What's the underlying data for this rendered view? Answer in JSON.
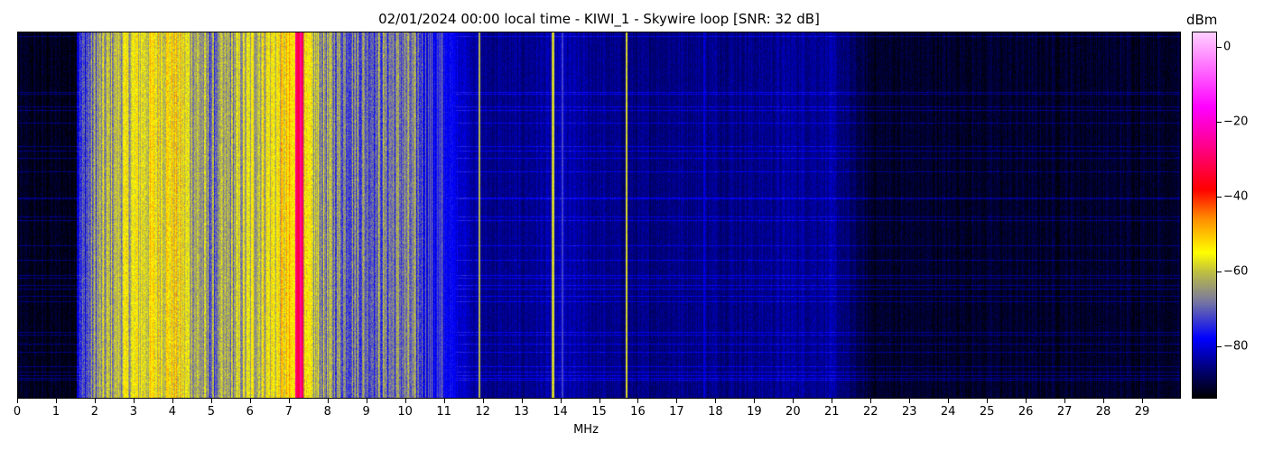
{
  "chart_data": {
    "type": "heatmap",
    "title": "02/01/2024 00:00 local time - KIWI_1 - Skywire loop [SNR: 32 dB]",
    "xlabel": "MHz",
    "ylabel": "",
    "xlim": [
      0,
      30
    ],
    "x_ticks": [
      "0",
      "1",
      "2",
      "3",
      "4",
      "5",
      "6",
      "7",
      "8",
      "9",
      "10",
      "11",
      "12",
      "13",
      "14",
      "15",
      "16",
      "17",
      "18",
      "19",
      "20",
      "21",
      "22",
      "23",
      "24",
      "25",
      "26",
      "27",
      "28",
      "29"
    ],
    "colorbar": {
      "label": "dBm",
      "range": [
        -94,
        4
      ],
      "ticks": [
        "0",
        "−20",
        "−40",
        "−60",
        "−80"
      ],
      "tick_values": [
        0,
        -20,
        -40,
        -60,
        -80
      ],
      "colormap_stops": [
        {
          "value": -94,
          "color": "#000000"
        },
        {
          "value": -86,
          "color": "#00007a"
        },
        {
          "value": -78,
          "color": "#0000ff"
        },
        {
          "value": -68,
          "color": "#7878a0"
        },
        {
          "value": -60,
          "color": "#c0c040"
        },
        {
          "value": -55,
          "color": "#ffff00"
        },
        {
          "value": -46,
          "color": "#ff9000"
        },
        {
          "value": -38,
          "color": "#ff0000"
        },
        {
          "value": -26,
          "color": "#ff0090"
        },
        {
          "value": -16,
          "color": "#ff00ff"
        },
        {
          "value": 4,
          "color": "#ffd0ff"
        }
      ]
    },
    "mean_power_dbm_per_mhz": {
      "x": [
        0,
        1,
        2,
        3,
        4,
        5,
        6,
        7,
        8,
        9,
        10,
        11,
        12,
        13,
        14,
        15,
        16,
        17,
        18,
        19,
        20,
        21,
        22,
        23,
        24,
        25,
        26,
        27,
        28,
        29
      ],
      "values": [
        -92,
        -90,
        -66,
        -58,
        -54,
        -68,
        -60,
        -54,
        -66,
        -68,
        -68,
        -77,
        -85,
        -85,
        -83,
        -85,
        -86,
        -85,
        -85,
        -85,
        -84,
        -84,
        -91,
        -91,
        -91,
        -91,
        -91,
        -91,
        -91,
        -91
      ]
    },
    "narrow_signals": [
      {
        "mhz": 7.25,
        "dbm": -27
      },
      {
        "mhz": 11.9,
        "dbm": -62
      },
      {
        "mhz": 13.8,
        "dbm": -60
      },
      {
        "mhz": 14.05,
        "dbm": -72
      },
      {
        "mhz": 15.7,
        "dbm": -58
      },
      {
        "mhz": 17.7,
        "dbm": -80
      }
    ]
  }
}
